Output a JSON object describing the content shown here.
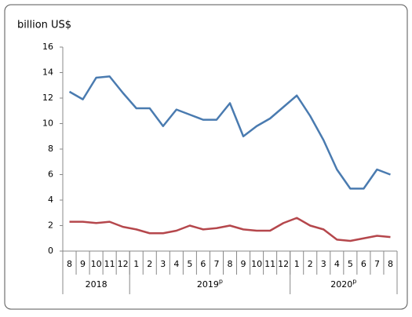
{
  "chart_data": {
    "type": "line",
    "title": "billion US$",
    "groups": [
      {
        "label": "2018",
        "months": [
          "8",
          "9",
          "10",
          "11",
          "12"
        ]
      },
      {
        "label": "2019",
        "sup": "p",
        "months": [
          "1",
          "2",
          "3",
          "4",
          "5",
          "6",
          "7",
          "8",
          "9",
          "10",
          "11",
          "12"
        ]
      },
      {
        "label": "2020",
        "sup": "p",
        "months": [
          "1",
          "2",
          "3",
          "4",
          "5",
          "6",
          "7",
          "8"
        ]
      }
    ],
    "series": [
      {
        "color": "#4a7bb0",
        "values": [
          12.5,
          11.9,
          13.6,
          13.7,
          12.4,
          11.2,
          11.2,
          9.8,
          11.1,
          10.7,
          10.3,
          10.3,
          11.6,
          9.0,
          9.8,
          10.4,
          11.3,
          12.2,
          10.6,
          8.7,
          6.4,
          4.9,
          4.9,
          6.4,
          6.0
        ]
      },
      {
        "color": "#b5474c",
        "values": [
          2.3,
          2.3,
          2.2,
          2.3,
          1.9,
          1.7,
          1.4,
          1.4,
          1.6,
          2.0,
          1.7,
          1.8,
          2.0,
          1.7,
          1.6,
          1.6,
          2.2,
          2.6,
          2.0,
          1.7,
          0.9,
          0.8,
          1.0,
          1.2,
          1.1
        ]
      }
    ],
    "ylim": [
      0,
      16
    ],
    "yticks": [
      0,
      2,
      4,
      6,
      8,
      10,
      12,
      14,
      16
    ]
  }
}
